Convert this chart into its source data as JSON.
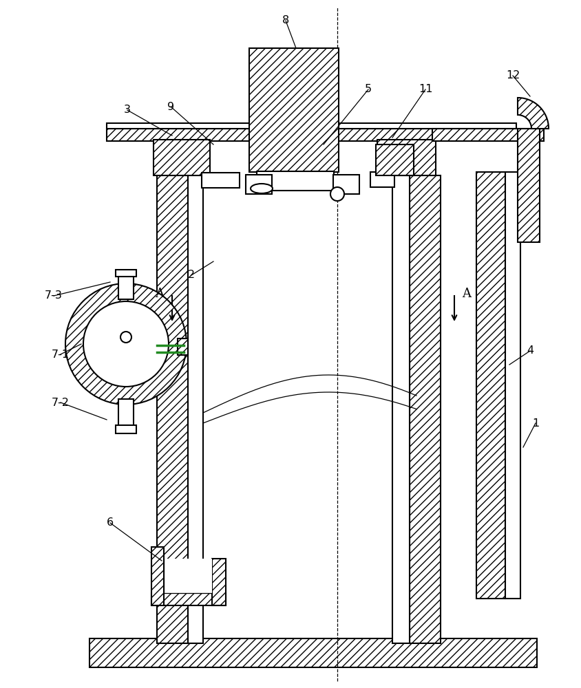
{
  "bg_color": "#ffffff",
  "lc": "#000000",
  "lw": 1.5,
  "lw_thin": 0.9,
  "hatch": "///",
  "fig_w": 8.44,
  "fig_h": 10.0,
  "dpi": 100,
  "xlim": [
    0,
    844
  ],
  "ylim": [
    0,
    1000
  ]
}
